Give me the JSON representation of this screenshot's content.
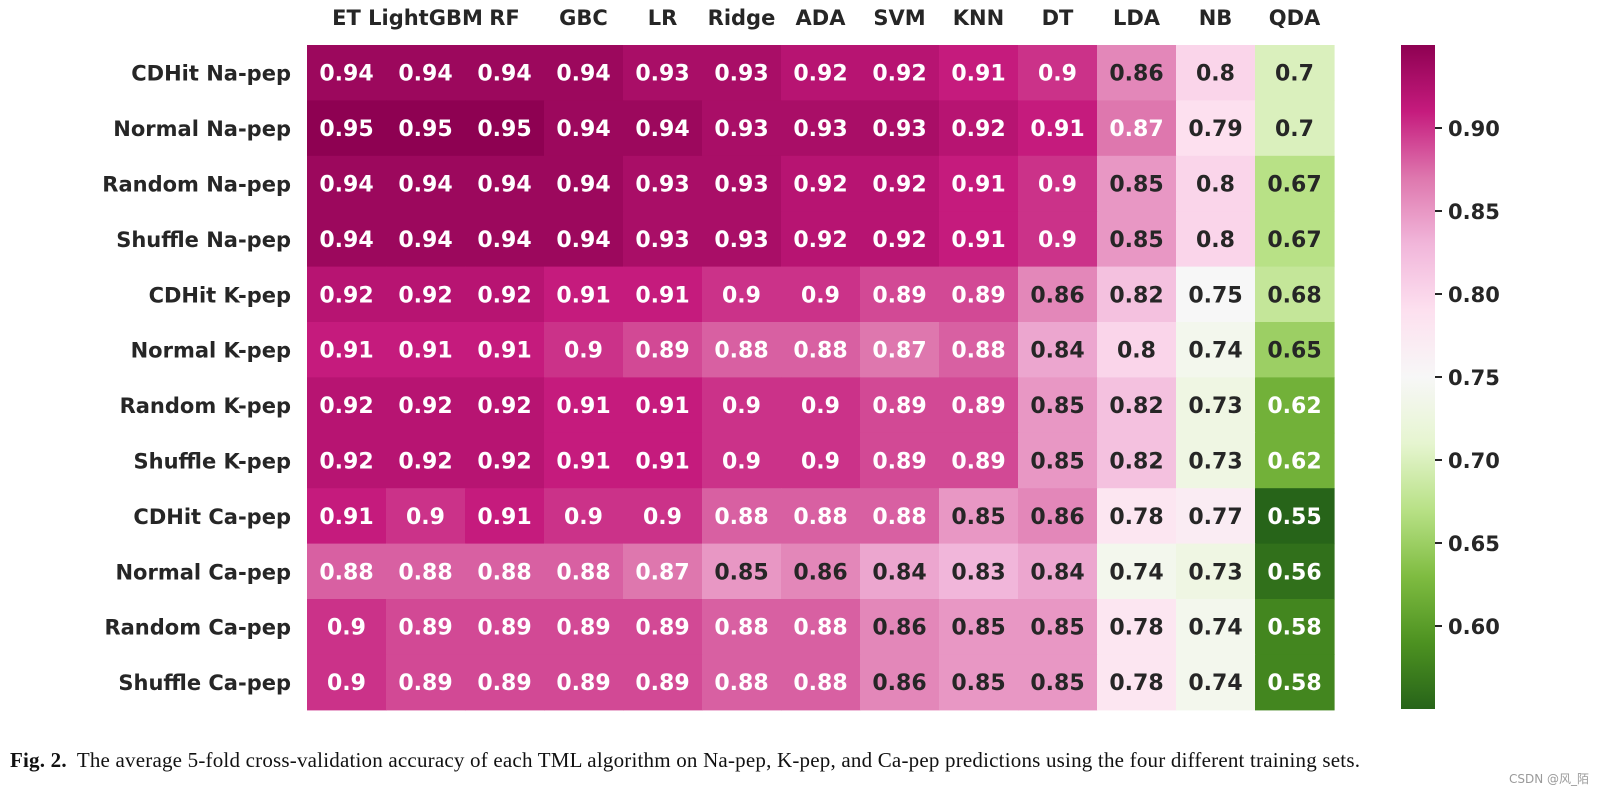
{
  "chart_data": {
    "type": "heatmap",
    "columns": [
      "ET",
      "LightGBM",
      "RF",
      "GBC",
      "LR",
      "Ridge",
      "ADA",
      "SVM",
      "KNN",
      "DT",
      "LDA",
      "NB",
      "QDA"
    ],
    "rows": [
      "CDHit Na-pep",
      "Normal Na-pep",
      "Random Na-pep",
      "Shuffle Na-pep",
      "CDHit K-pep",
      "Normal K-pep",
      "Random K-pep",
      "Shuffle K-pep",
      "CDHit Ca-pep",
      "Normal Ca-pep",
      "Random Ca-pep",
      "Shuffle Ca-pep"
    ],
    "values": [
      [
        0.94,
        0.94,
        0.94,
        0.94,
        0.93,
        0.93,
        0.92,
        0.92,
        0.91,
        0.9,
        0.86,
        0.8,
        0.7
      ],
      [
        0.95,
        0.95,
        0.95,
        0.94,
        0.94,
        0.93,
        0.93,
        0.93,
        0.92,
        0.91,
        0.87,
        0.79,
        0.7
      ],
      [
        0.94,
        0.94,
        0.94,
        0.94,
        0.93,
        0.93,
        0.92,
        0.92,
        0.91,
        0.9,
        0.85,
        0.8,
        0.67
      ],
      [
        0.94,
        0.94,
        0.94,
        0.94,
        0.93,
        0.93,
        0.92,
        0.92,
        0.91,
        0.9,
        0.85,
        0.8,
        0.67
      ],
      [
        0.92,
        0.92,
        0.92,
        0.91,
        0.91,
        0.9,
        0.9,
        0.89,
        0.89,
        0.86,
        0.82,
        0.75,
        0.68
      ],
      [
        0.91,
        0.91,
        0.91,
        0.9,
        0.89,
        0.88,
        0.88,
        0.87,
        0.88,
        0.84,
        0.8,
        0.74,
        0.65
      ],
      [
        0.92,
        0.92,
        0.92,
        0.91,
        0.91,
        0.9,
        0.9,
        0.89,
        0.89,
        0.85,
        0.82,
        0.73,
        0.62
      ],
      [
        0.92,
        0.92,
        0.92,
        0.91,
        0.91,
        0.9,
        0.9,
        0.89,
        0.89,
        0.85,
        0.82,
        0.73,
        0.62
      ],
      [
        0.91,
        0.9,
        0.91,
        0.9,
        0.9,
        0.88,
        0.88,
        0.88,
        0.85,
        0.86,
        0.78,
        0.77,
        0.55
      ],
      [
        0.88,
        0.88,
        0.88,
        0.88,
        0.87,
        0.85,
        0.86,
        0.84,
        0.83,
        0.84,
        0.74,
        0.73,
        0.56
      ],
      [
        0.9,
        0.89,
        0.89,
        0.89,
        0.89,
        0.88,
        0.88,
        0.86,
        0.85,
        0.85,
        0.78,
        0.74,
        0.58
      ],
      [
        0.9,
        0.89,
        0.89,
        0.89,
        0.89,
        0.88,
        0.88,
        0.86,
        0.85,
        0.85,
        0.78,
        0.74,
        0.58
      ]
    ],
    "value_range": [
      0.55,
      0.95
    ],
    "colormap": "PiYG",
    "colorbar": {
      "ticks": [
        0.6,
        0.65,
        0.7,
        0.75,
        0.8,
        0.85,
        0.9
      ],
      "tick_labels": [
        "0.60",
        "0.65",
        "0.70",
        "0.75",
        "0.80",
        "0.85",
        "0.90"
      ],
      "placement": "right"
    },
    "title": "",
    "xlabel": "",
    "ylabel": ""
  },
  "caption": {
    "label": "Fig. 2.",
    "text": "The average 5-fold cross-validation accuracy of each TML algorithm on Na-pep, K-pep, and Ca-pep predictions using the four different training sets."
  },
  "watermark": "CSDN @风_陌"
}
